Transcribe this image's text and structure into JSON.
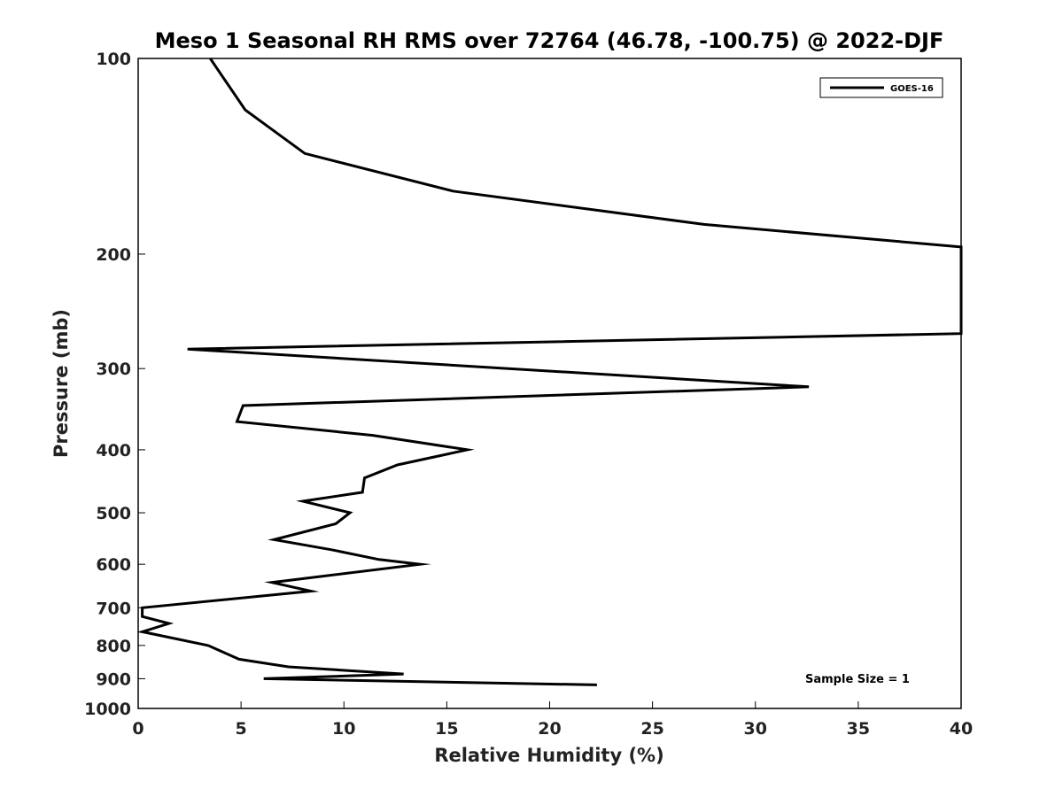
{
  "chart_data": {
    "type": "line",
    "title": "Meso 1 Seasonal RH RMS over 72764 (46.78, -100.75) @ 2022-DJF",
    "xlabel": "Relative Humidity (%)",
    "ylabel": "Pressure (mb)",
    "xlim": [
      0,
      40
    ],
    "ylim": [
      100,
      1000
    ],
    "yscale": "log",
    "y_reversed": true,
    "xticks": [
      0,
      5,
      10,
      15,
      20,
      25,
      30,
      35,
      40
    ],
    "xtick_labels": [
      "0",
      "5",
      "10",
      "15",
      "20",
      "25",
      "30",
      "35",
      "40"
    ],
    "yticks": [
      100,
      200,
      300,
      400,
      500,
      600,
      700,
      800,
      900,
      1000
    ],
    "ytick_labels": [
      "100",
      "200",
      "300",
      "400",
      "500",
      "600",
      "700",
      "800",
      "900",
      "1000"
    ],
    "grid": false,
    "legend_position": "top-right",
    "annotation": "Sample Size = 1",
    "series": [
      {
        "name": "GOES-16",
        "color": "#000000",
        "points": [
          {
            "x": 3.5,
            "y": 100
          },
          {
            "x": 5.2,
            "y": 120
          },
          {
            "x": 8.1,
            "y": 140
          },
          {
            "x": 15.3,
            "y": 160
          },
          {
            "x": 27.5,
            "y": 180
          },
          {
            "x": 40.0,
            "y": 195
          },
          {
            "x": 40.0,
            "y": 265
          },
          {
            "x": 2.4,
            "y": 280
          },
          {
            "x": 32.6,
            "y": 320
          },
          {
            "x": 5.1,
            "y": 342
          },
          {
            "x": 4.8,
            "y": 362
          },
          {
            "x": 11.4,
            "y": 380
          },
          {
            "x": 16.0,
            "y": 400
          },
          {
            "x": 12.6,
            "y": 422
          },
          {
            "x": 11.0,
            "y": 442
          },
          {
            "x": 10.9,
            "y": 465
          },
          {
            "x": 8.0,
            "y": 480
          },
          {
            "x": 10.3,
            "y": 500
          },
          {
            "x": 9.6,
            "y": 520
          },
          {
            "x": 6.6,
            "y": 550
          },
          {
            "x": 9.4,
            "y": 570
          },
          {
            "x": 11.7,
            "y": 590
          },
          {
            "x": 13.7,
            "y": 600
          },
          {
            "x": 6.5,
            "y": 640
          },
          {
            "x": 8.4,
            "y": 660
          },
          {
            "x": 0.2,
            "y": 700
          },
          {
            "x": 0.2,
            "y": 722
          },
          {
            "x": 1.5,
            "y": 740
          },
          {
            "x": 0.2,
            "y": 762
          },
          {
            "x": 3.4,
            "y": 800
          },
          {
            "x": 4.9,
            "y": 840
          },
          {
            "x": 7.3,
            "y": 863
          },
          {
            "x": 12.9,
            "y": 885
          },
          {
            "x": 6.1,
            "y": 900
          },
          {
            "x": 22.3,
            "y": 920
          }
        ]
      }
    ]
  }
}
